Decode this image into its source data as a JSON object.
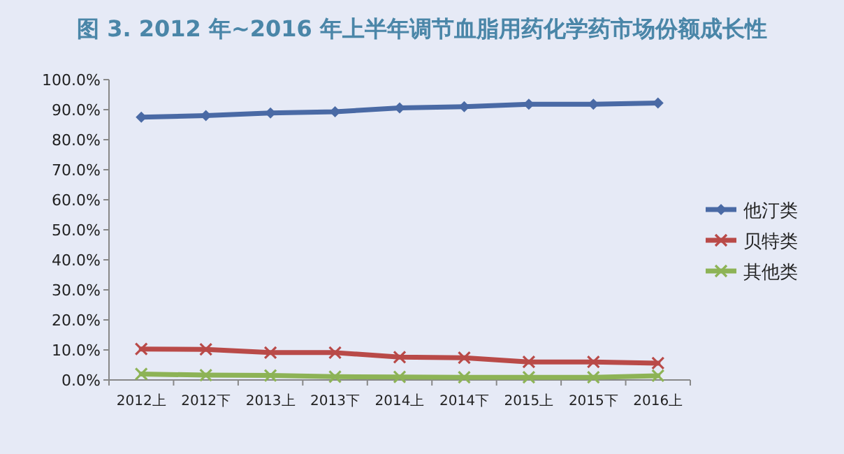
{
  "chart_data": {
    "type": "line",
    "title": "图 3. 2012 年~2016 年上半年调节血脂用药化学药市场份额成长性",
    "categories": [
      "2012上",
      "2012下",
      "2013上",
      "2013下",
      "2014上",
      "2014下",
      "2015上",
      "2015下",
      "2016上"
    ],
    "series": [
      {
        "name": "他汀类",
        "color": "#4a6aa5",
        "marker": "diamond",
        "values": [
          87.5,
          88.0,
          88.9,
          89.3,
          90.6,
          91.0,
          91.8,
          91.8,
          92.2
        ]
      },
      {
        "name": "贝特类",
        "color": "#b94a48",
        "marker": "cross",
        "values": [
          10.3,
          10.2,
          9.1,
          9.1,
          7.6,
          7.4,
          6.0,
          6.0,
          5.6
        ]
      },
      {
        "name": "其他类",
        "color": "#8db356",
        "marker": "cross",
        "values": [
          2.0,
          1.6,
          1.5,
          1.1,
          1.0,
          0.9,
          0.9,
          0.9,
          1.4
        ]
      }
    ],
    "ylim": [
      0,
      100
    ],
    "yticks": [
      {
        "value": 0,
        "label": "0.0%"
      },
      {
        "value": 10,
        "label": "10.0%"
      },
      {
        "value": 20,
        "label": "20.0%"
      },
      {
        "value": 30,
        "label": "30.0%"
      },
      {
        "value": 40,
        "label": "40.0%"
      },
      {
        "value": 50,
        "label": "50.0%"
      },
      {
        "value": 60,
        "label": "60.0%"
      },
      {
        "value": 70,
        "label": "70.0%"
      },
      {
        "value": 80,
        "label": "80.0%"
      },
      {
        "value": 90,
        "label": "90.0%"
      },
      {
        "value": 100,
        "label": "100.0%"
      }
    ],
    "grid": false,
    "legend": "right",
    "line_style": "solid"
  }
}
